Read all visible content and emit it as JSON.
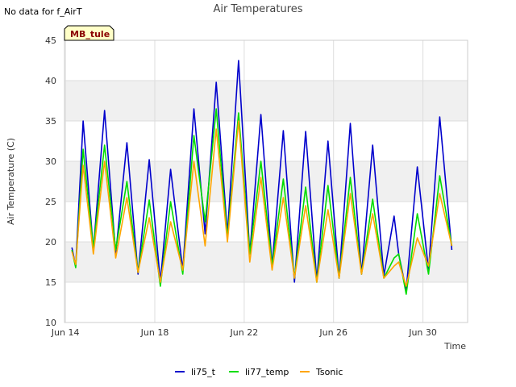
{
  "no_data_note": "No data for f_AirT",
  "site_tag": "MB_tule",
  "colors": {
    "li75_t": "#0000cc",
    "li77_temp": "#00dd00",
    "Tsonic": "#ffa500",
    "band": "#f0f0f0",
    "tag_bg": "#ffffc8"
  },
  "chart_data": {
    "type": "line",
    "title": "Air Temperatures",
    "xlabel": "Time",
    "ylabel": "Air Temperature (C)",
    "xlim": [
      "2016-06-13T23:00",
      "2016-07-02T00:00"
    ],
    "ylim": [
      10,
      45
    ],
    "yticks": [
      10,
      15,
      20,
      25,
      30,
      35,
      40,
      45
    ],
    "xticks": [
      {
        "x": "2016-06-14",
        "label": "Jun 14"
      },
      {
        "x": "2016-06-18",
        "label": "Jun 18"
      },
      {
        "x": "2016-06-22",
        "label": "Jun 22"
      },
      {
        "x": "2016-06-26",
        "label": "Jun 26"
      },
      {
        "x": "2016-06-30",
        "label": "Jun 30"
      }
    ],
    "grid": true,
    "legend_position": "bottom",
    "series": [
      {
        "name": "li75_t",
        "x": [
          "2016-06-14T07:00",
          "2016-06-14T11:00",
          "2016-06-14T19:00",
          "2016-06-15T06:00",
          "2016-06-15T18:00",
          "2016-06-16T06:00",
          "2016-06-16T18:00",
          "2016-06-17T06:00",
          "2016-06-17T18:00",
          "2016-06-18T06:00",
          "2016-06-18T17:00",
          "2016-06-19T06:00",
          "2016-06-19T18:00",
          "2016-06-20T06:00",
          "2016-06-20T18:00",
          "2016-06-21T06:00",
          "2016-06-21T18:00",
          "2016-06-22T06:00",
          "2016-06-22T18:00",
          "2016-06-23T06:00",
          "2016-06-23T18:00",
          "2016-06-24T06:00",
          "2016-06-24T18:00",
          "2016-06-25T06:00",
          "2016-06-25T18:00",
          "2016-06-26T06:00",
          "2016-06-26T18:00",
          "2016-06-27T06:00",
          "2016-06-27T18:00",
          "2016-06-28T06:00",
          "2016-06-28T17:00",
          "2016-06-28T22:00",
          "2016-06-29T06:00",
          "2016-06-29T18:00",
          "2016-06-30T06:00",
          "2016-06-30T18:00",
          "2016-07-01T07:00"
        ],
        "y": [
          19.3,
          17.0,
          35.0,
          19.0,
          36.3,
          18.5,
          32.3,
          16.0,
          30.2,
          15.0,
          29.0,
          16.5,
          36.5,
          21.0,
          39.8,
          21.0,
          42.5,
          18.5,
          35.8,
          17.0,
          33.8,
          15.0,
          33.7,
          15.2,
          32.5,
          15.5,
          34.7,
          16.0,
          32.0,
          15.8,
          23.2,
          18.5,
          14.0,
          29.3,
          16.5,
          35.5,
          19.0
        ]
      },
      {
        "name": "li77_temp",
        "x": [
          "2016-06-14T07:00",
          "2016-06-14T11:00",
          "2016-06-14T19:00",
          "2016-06-15T06:00",
          "2016-06-15T18:00",
          "2016-06-16T06:00",
          "2016-06-16T18:00",
          "2016-06-17T06:00",
          "2016-06-17T18:00",
          "2016-06-18T06:00",
          "2016-06-18T17:00",
          "2016-06-19T06:00",
          "2016-06-19T18:00",
          "2016-06-20T06:00",
          "2016-06-20T18:00",
          "2016-06-21T06:00",
          "2016-06-21T18:00",
          "2016-06-22T06:00",
          "2016-06-22T18:00",
          "2016-06-23T06:00",
          "2016-06-23T18:00",
          "2016-06-24T06:00",
          "2016-06-24T18:00",
          "2016-06-25T06:00",
          "2016-06-25T18:00",
          "2016-06-26T06:00",
          "2016-06-26T18:00",
          "2016-06-27T06:00",
          "2016-06-27T18:00",
          "2016-06-28T06:00",
          "2016-06-28T17:00",
          "2016-06-28T22:00",
          "2016-06-29T06:00",
          "2016-06-29T18:00",
          "2016-06-30T06:00",
          "2016-06-30T18:00",
          "2016-07-01T07:00"
        ],
        "y": [
          19.0,
          16.8,
          31.5,
          19.2,
          32.0,
          19.0,
          27.5,
          16.2,
          25.2,
          14.5,
          25.0,
          16.0,
          33.2,
          22.5,
          36.5,
          20.5,
          36.0,
          18.5,
          30.0,
          17.0,
          27.8,
          15.5,
          26.8,
          15.0,
          27.0,
          15.5,
          28.0,
          16.0,
          25.3,
          15.5,
          18.0,
          18.5,
          13.5,
          23.5,
          16.0,
          28.2,
          19.5
        ]
      },
      {
        "name": "Tsonic",
        "x": [
          "2016-06-14T07:00",
          "2016-06-14T11:00",
          "2016-06-14T19:00",
          "2016-06-15T06:00",
          "2016-06-15T18:00",
          "2016-06-16T06:00",
          "2016-06-16T18:00",
          "2016-06-17T06:00",
          "2016-06-17T18:00",
          "2016-06-18T06:00",
          "2016-06-18T17:00",
          "2016-06-19T06:00",
          "2016-06-19T18:00",
          "2016-06-20T06:00",
          "2016-06-20T18:00",
          "2016-06-21T06:00",
          "2016-06-21T18:00",
          "2016-06-22T06:00",
          "2016-06-22T18:00",
          "2016-06-23T06:00",
          "2016-06-23T18:00",
          "2016-06-24T06:00",
          "2016-06-24T18:00",
          "2016-06-25T06:00",
          "2016-06-25T18:00",
          "2016-06-26T06:00",
          "2016-06-26T18:00",
          "2016-06-27T06:00",
          "2016-06-27T18:00",
          "2016-06-28T06:00",
          "2016-06-28T17:00",
          "2016-06-28T22:00",
          "2016-06-29T06:00",
          "2016-06-29T18:00",
          "2016-06-30T06:00",
          "2016-06-30T18:00",
          "2016-07-01T07:00"
        ],
        "y": [
          18.8,
          17.2,
          29.5,
          18.5,
          30.0,
          18.0,
          25.5,
          16.2,
          23.0,
          15.0,
          22.5,
          16.5,
          30.0,
          19.5,
          34.0,
          20.0,
          35.0,
          17.5,
          28.0,
          16.5,
          25.5,
          15.5,
          24.5,
          15.0,
          24.0,
          15.5,
          26.0,
          16.0,
          23.5,
          15.5,
          17.0,
          17.5,
          14.5,
          20.5,
          17.0,
          26.0,
          19.5
        ]
      }
    ]
  }
}
